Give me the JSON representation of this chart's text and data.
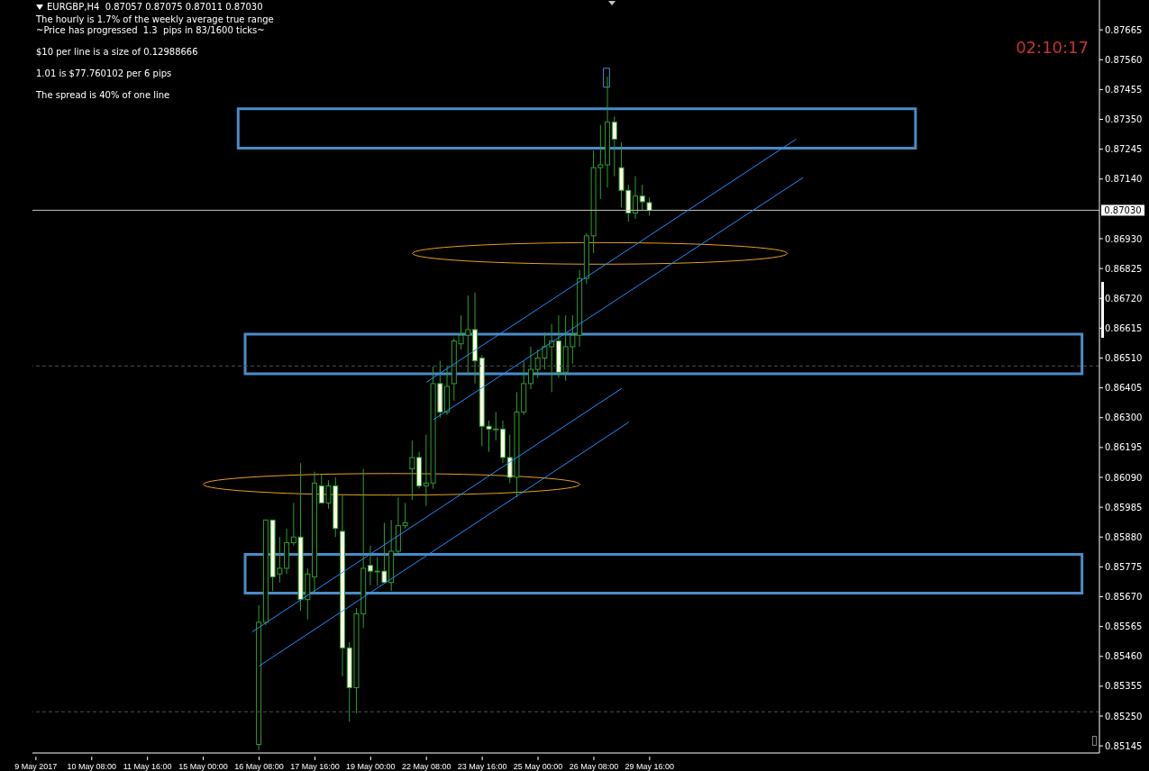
{
  "chart_data": {
    "type": "candlestick",
    "title": "EURGBP,H4  0.87057 0.87075 0.87011 0.87030",
    "annotations": [
      "The hourly is 1.7% of the weekly average true range",
      "~Price has progressed  1.3  pips in 83/1600 ticks~",
      "$10 per line is a size of 0.12988666",
      "1.01 is $77.760102 per 6 pips",
      "The spread is 40% of one line",
      "02:10:17"
    ],
    "categories": [
      "9 May 2017",
      null,
      null,
      null,
      null,
      null,
      null,
      null,
      "10 May 08:00",
      null,
      null,
      null,
      null,
      null,
      null,
      null,
      "11 May 16:00",
      null,
      null,
      null,
      null,
      null,
      null,
      null,
      "15 May 00:00",
      null,
      null,
      null,
      null,
      null,
      null,
      null,
      "16 May 08:00",
      null,
      null,
      null,
      null,
      null,
      null,
      null,
      "17 May 16:00",
      null,
      null,
      null,
      null,
      null,
      null,
      null,
      "19 May 00:00",
      null,
      null,
      null,
      null,
      null,
      null,
      null,
      "22 May 08:00",
      null,
      null,
      null,
      null,
      null,
      null,
      null,
      "23 May 16:00",
      null,
      null,
      null,
      null,
      null,
      null,
      null,
      "25 May 00:00",
      null,
      null,
      null,
      null,
      null,
      null,
      null,
      "26 May 08:00",
      null,
      null,
      null,
      null,
      null,
      null,
      null,
      "29 May 16:00",
      null,
      null,
      null,
      null,
      null,
      null,
      null,
      null,
      null,
      null,
      null,
      null,
      null,
      null,
      null,
      null,
      null,
      null,
      null,
      null,
      null,
      null,
      null,
      null,
      null,
      null,
      null,
      null,
      null,
      null,
      null,
      null,
      null,
      null,
      null,
      null,
      null,
      null,
      null,
      null,
      null,
      null,
      null,
      null,
      null,
      null,
      null,
      null,
      null,
      null,
      null,
      null,
      null,
      null,
      null,
      null,
      null,
      null,
      null,
      null,
      null,
      null,
      null,
      null
    ],
    "ohlc": [
      null,
      null,
      null,
      null,
      null,
      null,
      null,
      null,
      null,
      null,
      null,
      null,
      null,
      null,
      null,
      null,
      null,
      null,
      null,
      null,
      null,
      null,
      null,
      null,
      null,
      null,
      null,
      null,
      null,
      null,
      null,
      null,
      [
        0.8515,
        0.8564,
        0.8513,
        0.8558
      ],
      [
        0.8558,
        0.8594,
        0.8557,
        0.8594
      ],
      [
        0.8594,
        0.8594,
        0.8569,
        0.8574
      ],
      [
        0.8575,
        0.8588,
        0.8572,
        0.8577
      ],
      [
        0.8577,
        0.8591,
        0.8575,
        0.8586
      ],
      [
        0.8586,
        0.86,
        0.8585,
        0.8588
      ],
      [
        0.8588,
        0.8614,
        0.8562,
        0.8566
      ],
      [
        0.8566,
        0.8577,
        0.8559,
        0.8575
      ],
      [
        0.8574,
        0.8611,
        0.8568,
        0.8607
      ],
      [
        0.8606,
        0.861,
        0.86,
        0.86
      ],
      [
        0.86,
        0.8608,
        0.8598,
        0.8606
      ],
      [
        0.8606,
        0.8609,
        0.8588,
        0.8591
      ],
      [
        0.859,
        0.8603,
        0.8539,
        0.8549
      ],
      [
        0.8549,
        0.8551,
        0.8523,
        0.8535
      ],
      [
        0.8535,
        0.8563,
        0.8526,
        0.8561
      ],
      [
        0.8561,
        0.8612,
        0.8556,
        0.8577
      ],
      [
        0.8578,
        0.8585,
        0.8571,
        0.8576
      ],
      [
        0.8576,
        0.8581,
        0.8571,
        0.8576
      ],
      [
        0.8576,
        0.8593,
        0.8572,
        0.8572
      ],
      [
        0.8572,
        0.8594,
        0.8569,
        0.8583
      ],
      [
        0.8583,
        0.8602,
        0.8582,
        0.8592
      ],
      [
        0.8592,
        0.86,
        0.8591,
        0.8593
      ],
      [
        0.8612,
        0.8622,
        0.8601,
        0.8616
      ],
      [
        0.8616,
        0.8618,
        0.8605,
        0.8606
      ],
      [
        0.8606,
        0.8624,
        0.8599,
        0.8607
      ],
      [
        0.8607,
        0.8648,
        0.8605,
        0.8642
      ],
      [
        0.8642,
        0.865,
        0.863,
        0.8632
      ],
      [
        0.8632,
        0.8648,
        0.8631,
        0.8641
      ],
      [
        0.8642,
        0.8658,
        0.8636,
        0.8657
      ],
      [
        0.8656,
        0.8666,
        0.8654,
        0.8659
      ],
      [
        0.8659,
        0.8673,
        0.8645,
        0.8661
      ],
      [
        0.8661,
        0.8674,
        0.8642,
        0.865
      ],
      [
        0.8651,
        0.8652,
        0.862,
        0.8627
      ],
      [
        0.8627,
        0.8629,
        0.8618,
        0.8626
      ],
      [
        0.8626,
        0.8632,
        0.8622,
        0.8626
      ],
      [
        0.8626,
        0.8629,
        0.8614,
        0.8616
      ],
      [
        0.8616,
        0.8624,
        0.8607,
        0.8609
      ],
      [
        0.8609,
        0.8639,
        0.8602,
        0.8632
      ],
      [
        0.8632,
        0.865,
        0.8631,
        0.8642
      ],
      [
        0.8642,
        0.8655,
        0.864,
        0.8647
      ],
      [
        0.8647,
        0.8654,
        0.8644,
        0.8651
      ],
      [
        0.8651,
        0.866,
        0.8647,
        0.8655
      ],
      [
        0.8655,
        0.8663,
        0.8639,
        0.8657
      ],
      [
        0.8657,
        0.8666,
        0.8644,
        0.8646
      ],
      [
        0.8646,
        0.8666,
        0.8643,
        0.8655
      ],
      [
        0.8655,
        0.8666,
        0.8649,
        0.8659
      ],
      [
        0.8659,
        0.8682,
        0.8655,
        0.8679
      ],
      [
        0.8679,
        0.8695,
        0.8677,
        0.8694
      ],
      [
        0.8694,
        0.8724,
        0.8688,
        0.8718
      ],
      [
        0.8718,
        0.8733,
        0.8707,
        0.8719
      ],
      [
        0.8719,
        0.875,
        0.8711,
        0.8734
      ],
      [
        0.8734,
        0.8736,
        0.8715,
        0.8728
      ],
      [
        0.8718,
        0.8727,
        0.8704,
        0.871
      ],
      [
        0.871,
        0.8712,
        0.8699,
        0.8702
      ],
      [
        0.8702,
        0.8715,
        0.87,
        0.8708
      ],
      [
        0.8708,
        0.8712,
        0.8703,
        0.8706
      ],
      [
        0.87057,
        0.87075,
        0.87011,
        0.8703
      ],
      null,
      null,
      null,
      null,
      null,
      null,
      null,
      null,
      null,
      null,
      null,
      null,
      null,
      null,
      null,
      null,
      null,
      null,
      null,
      null,
      null,
      null,
      null,
      null,
      null,
      null,
      null,
      null,
      null,
      null,
      null,
      null,
      null,
      null,
      null,
      null,
      null,
      null,
      null,
      null,
      null,
      null,
      null,
      null,
      null,
      null,
      null,
      null,
      null,
      null,
      null,
      null,
      null,
      null,
      null,
      null,
      null,
      null,
      null,
      null,
      null,
      null,
      null,
      null
    ],
    "series": [
      {
        "type": "line",
        "color": "#1e90ff",
        "values": [
          null,
          null,
          null,
          null,
          null,
          null,
          null,
          null,
          null,
          null,
          null,
          null,
          null,
          null,
          null,
          null,
          null,
          null,
          null,
          null,
          null,
          null,
          null,
          null,
          null,
          null,
          null,
          null,
          null,
          null,
          null,
          0.85546,
          null,
          null,
          null,
          null,
          null,
          null,
          null,
          null,
          null,
          null,
          null,
          null,
          null,
          null,
          null,
          null,
          null,
          null,
          null,
          null,
          null,
          null,
          null,
          null,
          null,
          null,
          null,
          null,
          null,
          null,
          null,
          null,
          null,
          null,
          null,
          null,
          null,
          null,
          null,
          null,
          null,
          null,
          null,
          null,
          null,
          null,
          null,
          null,
          null,
          null,
          null,
          null,
          0.86403,
          null,
          null,
          null,
          null,
          null,
          null,
          null,
          null,
          null,
          null,
          null,
          null,
          null,
          null,
          null,
          null,
          null,
          null,
          null,
          null,
          null,
          null,
          null,
          null,
          null,
          null,
          null,
          null,
          null,
          null,
          null,
          null,
          null,
          null,
          null,
          null,
          null,
          null,
          null,
          null,
          null,
          null,
          null,
          null,
          null,
          null,
          null,
          null,
          null,
          null,
          null,
          null,
          null,
          null,
          null,
          null,
          null,
          null,
          null,
          null,
          null,
          null,
          null,
          null,
          null,
          null,
          null,
          null
        ]
      },
      {
        "type": "line",
        "color": "#1e90ff",
        "values": [
          null,
          null,
          null,
          null,
          null,
          null,
          null,
          null,
          null,
          null,
          null,
          null,
          null,
          null,
          null,
          null,
          null,
          null,
          null,
          null,
          null,
          null,
          null,
          null,
          null,
          null,
          null,
          null,
          null,
          null,
          null,
          null,
          0.85426,
          null,
          null,
          null,
          null,
          null,
          null,
          null,
          null,
          null,
          null,
          null,
          null,
          null,
          null,
          null,
          null,
          null,
          null,
          null,
          null,
          null,
          null,
          null,
          null,
          null,
          null,
          null,
          null,
          null,
          null,
          null,
          null,
          null,
          null,
          null,
          null,
          null,
          null,
          null,
          null,
          null,
          null,
          null,
          null,
          null,
          null,
          null,
          null,
          null,
          null,
          null,
          null,
          0.86284,
          null,
          null,
          null,
          null,
          null,
          null,
          null,
          null,
          null,
          null,
          null,
          null,
          null,
          null,
          null,
          null,
          null,
          null,
          null,
          null,
          null,
          null,
          null,
          null,
          null,
          null,
          null,
          null,
          null,
          null,
          null,
          null,
          null,
          null,
          null,
          null,
          null,
          null,
          null,
          null,
          null,
          null,
          null,
          null,
          null,
          null,
          null,
          null,
          null,
          null,
          null,
          null,
          null,
          null,
          null,
          null,
          null,
          null,
          null,
          null,
          null,
          null,
          null,
          null,
          null,
          null,
          null
        ]
      },
      {
        "type": "line",
        "color": "#1e90ff",
        "values": [
          null,
          null,
          null,
          null,
          null,
          null,
          null,
          null,
          null,
          null,
          null,
          null,
          null,
          null,
          null,
          null,
          null,
          null,
          null,
          null,
          null,
          null,
          null,
          null,
          null,
          null,
          null,
          null,
          null,
          null,
          null,
          null,
          null,
          null,
          null,
          null,
          null,
          null,
          null,
          null,
          null,
          null,
          null,
          null,
          null,
          null,
          null,
          null,
          null,
          null,
          null,
          null,
          null,
          null,
          null,
          null,
          0.86425,
          null,
          null,
          null,
          null,
          null,
          null,
          null,
          null,
          null,
          null,
          null,
          null,
          null,
          null,
          null,
          null,
          null,
          null,
          null,
          null,
          null,
          null,
          null,
          null,
          null,
          null,
          null,
          null,
          null,
          null,
          null,
          null,
          null,
          null,
          null,
          null,
          null,
          null,
          null,
          null,
          null,
          null,
          null,
          null,
          null,
          null,
          null,
          null,
          null,
          null,
          null,
          null,
          0.8728,
          null,
          null,
          null,
          null,
          null,
          null,
          null,
          null,
          null,
          null,
          null,
          null,
          null,
          null,
          null,
          null,
          null,
          null,
          null,
          null,
          null,
          null,
          null,
          null,
          null,
          null,
          null,
          null,
          null,
          null,
          null,
          null,
          null,
          null,
          null,
          null,
          null,
          null,
          null,
          null,
          null,
          null,
          null
        ]
      },
      {
        "type": "line",
        "color": "#1e90ff",
        "values": [
          null,
          null,
          null,
          null,
          null,
          null,
          null,
          null,
          null,
          null,
          null,
          null,
          null,
          null,
          null,
          null,
          null,
          null,
          null,
          null,
          null,
          null,
          null,
          null,
          null,
          null,
          null,
          null,
          null,
          null,
          null,
          null,
          null,
          null,
          null,
          null,
          null,
          null,
          null,
          null,
          null,
          null,
          null,
          null,
          null,
          null,
          null,
          null,
          null,
          null,
          null,
          null,
          null,
          null,
          null,
          null,
          null,
          0.86293,
          null,
          null,
          null,
          null,
          null,
          null,
          null,
          null,
          null,
          null,
          null,
          null,
          null,
          null,
          null,
          null,
          null,
          null,
          null,
          null,
          null,
          null,
          null,
          null,
          null,
          null,
          null,
          null,
          null,
          null,
          null,
          null,
          null,
          null,
          null,
          null,
          null,
          null,
          null,
          null,
          null,
          null,
          null,
          null,
          null,
          null,
          null,
          null,
          null,
          null,
          null,
          null,
          0.87145,
          null,
          null,
          null,
          null,
          null,
          null,
          null,
          null,
          null,
          null,
          null,
          null,
          null,
          null,
          null,
          null,
          null,
          null,
          null,
          null,
          null,
          null,
          null,
          null,
          null,
          null,
          null,
          null,
          null,
          null,
          null,
          null,
          null,
          null,
          null,
          null,
          null,
          null,
          null,
          null,
          null,
          null
        ]
      }
    ],
    "ylim": [
      0.8512,
      0.8777
    ],
    "yticks": [
      0.85145,
      {
        "value": 0.8525,
        "label": "0.85250"
      },
      0.85355,
      {
        "value": 0.8546,
        "label": "0.85460"
      },
      0.85565,
      {
        "value": 0.8567,
        "label": "0.85670"
      },
      0.85775,
      {
        "value": 0.8588,
        "label": "0.85880"
      },
      0.85985,
      {
        "value": 0.8609,
        "label": "0.86090"
      },
      0.86195,
      {
        "value": 0.863,
        "label": "0.86300"
      },
      0.86405,
      {
        "value": 0.8651,
        "label": "0.86510"
      },
      0.86615,
      {
        "value": 0.8672,
        "label": "0.86720"
      },
      0.86825,
      {
        "value": 0.8693,
        "label": "0.86930"
      },
      {
        "value": 0.8714,
        "label": "0.87140"
      },
      0.87245,
      {
        "value": 0.8735,
        "label": "0.87350"
      },
      0.87455,
      {
        "value": 0.8756,
        "label": "0.87560"
      },
      0.87665
    ],
    "ref_lines": [
      {
        "axis": "y",
        "value": 0.8703,
        "label": "0.87030",
        "color": "#c0c0c0",
        "line_style": "solid"
      },
      {
        "axis": "y",
        "value": 0.86482,
        "color": "#505050",
        "line_style": "dashed"
      },
      {
        "axis": "y",
        "value": 0.85265,
        "color": "#505050",
        "line_style": "dashed"
      }
    ]
  }
}
